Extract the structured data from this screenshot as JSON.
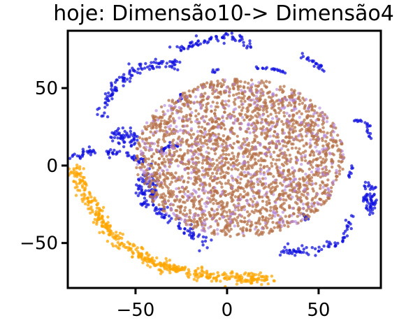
{
  "chart_data": {
    "type": "scatter",
    "title": "hoje: Dimensão10-> Dimensão4",
    "xlabel": "",
    "ylabel": "",
    "xlim": [
      -87,
      84
    ],
    "ylim": [
      -79,
      87
    ],
    "x_ticks": [
      -50,
      0,
      50
    ],
    "y_ticks": [
      -50,
      0,
      50
    ],
    "x_tick_labels": [
      "−50",
      "0",
      "50"
    ],
    "y_tick_labels": [
      "−50",
      "0",
      "50"
    ],
    "grid": false,
    "legend": "none",
    "colors": {
      "blue": "#1010e0",
      "orange": "#ffa500",
      "brown": "#b5724a",
      "purple": "#b080d8"
    },
    "clusters": [
      {
        "color": "blue",
        "shape": "arc",
        "path": [
          [
            -28,
            75
          ],
          [
            -12,
            80
          ],
          [
            2,
            84
          ],
          [
            12,
            80
          ],
          [
            12,
            76
          ]
        ],
        "n": 70,
        "spread": 3
      },
      {
        "color": "blue",
        "shape": "arc",
        "path": [
          [
            -70,
            33
          ],
          [
            -62,
            50
          ],
          [
            -50,
            62
          ],
          [
            -38,
            66
          ],
          [
            -28,
            65
          ]
        ],
        "n": 110,
        "spread": 3.5
      },
      {
        "color": "blue",
        "shape": "blob",
        "center": [
          -56,
          18
        ],
        "radius": [
          8,
          7
        ],
        "n": 55
      },
      {
        "color": "blue",
        "shape": "arc",
        "path": [
          [
            -85,
            5
          ],
          [
            -78,
            9
          ],
          [
            -65,
            9
          ],
          [
            -52,
            6
          ],
          [
            -42,
            0
          ]
        ],
        "n": 65,
        "spread": 2.5
      },
      {
        "color": "blue",
        "shape": "blob",
        "center": [
          -44,
          -16
        ],
        "radius": [
          6,
          12
        ],
        "n": 75
      },
      {
        "color": "blue",
        "shape": "arc",
        "path": [
          [
            -42,
            -25
          ],
          [
            -30,
            -35
          ],
          [
            -20,
            -45
          ],
          [
            -10,
            -50
          ]
        ],
        "n": 60,
        "spread": 3.5
      },
      {
        "color": "blue",
        "shape": "arc",
        "path": [
          [
            -38,
            8
          ],
          [
            -30,
            14
          ],
          [
            -26,
            12
          ]
        ],
        "n": 20,
        "spread": 1.5
      },
      {
        "color": "blue",
        "shape": "arc",
        "path": [
          [
            -27,
            40
          ],
          [
            -25,
            46
          ]
        ],
        "n": 8,
        "spread": 1
      },
      {
        "color": "blue",
        "shape": "arc",
        "path": [
          [
            -9,
            60
          ],
          [
            -5,
            62
          ]
        ],
        "n": 6,
        "spread": 1
      },
      {
        "color": "blue",
        "shape": "arc",
        "path": [
          [
            14,
            63
          ],
          [
            24,
            63
          ],
          [
            32,
            60
          ]
        ],
        "n": 18,
        "spread": 1
      },
      {
        "color": "blue",
        "shape": "arc",
        "path": [
          [
            40,
            72
          ],
          [
            48,
            66
          ],
          [
            54,
            60
          ]
        ],
        "n": 22,
        "spread": 1.5
      },
      {
        "color": "blue",
        "shape": "arc",
        "path": [
          [
            68,
            30
          ],
          [
            76,
            27
          ],
          [
            78,
            18
          ]
        ],
        "n": 20,
        "spread": 1.5
      },
      {
        "color": "blue",
        "shape": "blob",
        "center": [
          78,
          -20
        ],
        "radius": [
          4,
          12
        ],
        "n": 60
      },
      {
        "color": "blue",
        "shape": "arc",
        "path": [
          [
            30,
            -55
          ],
          [
            48,
            -55
          ],
          [
            62,
            -48
          ],
          [
            68,
            -34
          ]
        ],
        "n": 70,
        "spread": 3
      },
      {
        "color": "blue",
        "shape": "arc",
        "path": [
          [
            68,
            0
          ],
          [
            66,
            -8
          ]
        ],
        "n": 8,
        "spread": 1
      },
      {
        "color": "blue",
        "shape": "arc",
        "path": [
          [
            40,
            -28
          ],
          [
            44,
            -36
          ]
        ],
        "n": 8,
        "spread": 1
      },
      {
        "color": "orange",
        "shape": "arc",
        "path": [
          [
            -84,
            -2
          ],
          [
            -76,
            -20
          ],
          [
            -66,
            -40
          ],
          [
            -52,
            -55
          ],
          [
            -38,
            -64
          ],
          [
            -20,
            -69
          ],
          [
            0,
            -72
          ],
          [
            18,
            -74
          ],
          [
            24,
            -72
          ]
        ],
        "n": 460,
        "spread": 4
      },
      {
        "color": "brown",
        "shape": "blob",
        "center": [
          7,
          5
        ],
        "radius": [
          57,
          51
        ],
        "n": 2200
      },
      {
        "color": "purple",
        "shape": "blob",
        "center": [
          7,
          5
        ],
        "radius": [
          57,
          51
        ],
        "n": 500
      }
    ]
  }
}
